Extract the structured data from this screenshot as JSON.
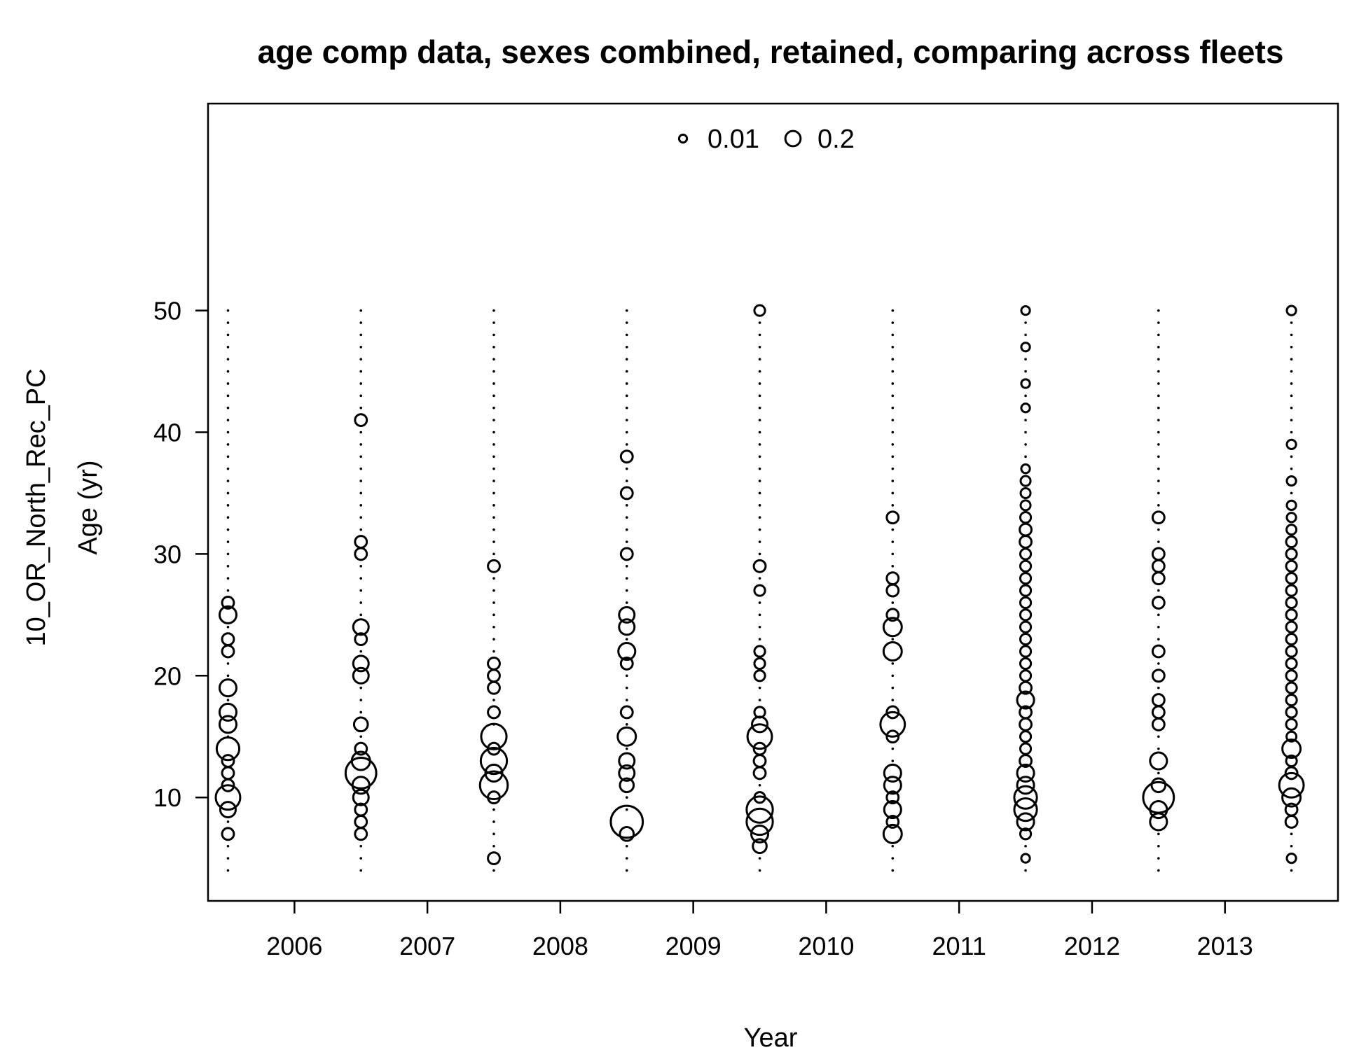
{
  "chart_data": {
    "type": "scatter",
    "subtype": "bubble",
    "title": "age comp data, sexes combined, retained, comparing across fleets",
    "xlabel": "Year",
    "ylabel_lines": [
      "10_OR_North_Rec_PC",
      "Age (yr)"
    ],
    "xlim": [
      2005.35,
      2013.85
    ],
    "ylim": [
      1.5,
      67
    ],
    "x_ticks": [
      2006,
      2007,
      2008,
      2009,
      2010,
      2011,
      2012,
      2013
    ],
    "y_ticks": [
      10,
      20,
      30,
      40,
      50
    ],
    "legend": {
      "placement": "top",
      "entries": [
        {
          "label": "0.01",
          "value": 0.01
        },
        {
          "label": "0.2",
          "value": 0.2
        }
      ]
    },
    "grid": false,
    "series": [
      {
        "year": 2005.5,
        "ages": [
          4,
          5,
          6,
          7,
          8,
          9,
          10,
          11,
          12,
          13,
          14,
          15,
          16,
          17,
          18,
          19,
          20,
          21,
          22,
          23,
          24,
          25,
          26,
          27,
          28,
          29,
          30,
          31,
          32,
          33,
          34,
          35,
          36,
          37,
          38,
          39,
          40,
          41,
          42,
          43,
          44,
          45,
          46,
          47,
          48,
          49,
          50
        ],
        "obs": {
          "7": 0.02,
          "9": 0.04,
          "10": 0.12,
          "11": 0.02,
          "12": 0.02,
          "13": 0.02,
          "14": 0.1,
          "16": 0.05,
          "17": 0.05,
          "19": 0.05,
          "22": 0.02,
          "23": 0.02,
          "25": 0.05,
          "26": 0.02
        }
      },
      {
        "year": 2006.5,
        "ages": [
          4,
          5,
          6,
          7,
          8,
          9,
          10,
          11,
          12,
          13,
          14,
          15,
          16,
          17,
          18,
          19,
          20,
          21,
          22,
          23,
          24,
          25,
          26,
          27,
          28,
          29,
          30,
          31,
          32,
          33,
          34,
          35,
          36,
          37,
          38,
          39,
          40,
          41,
          42,
          43,
          44,
          45,
          46,
          47,
          48,
          49,
          50
        ],
        "obs": {
          "7": 0.02,
          "8": 0.02,
          "9": 0.02,
          "10": 0.04,
          "11": 0.05,
          "12": 0.2,
          "13": 0.06,
          "14": 0.02,
          "16": 0.03,
          "20": 0.04,
          "21": 0.04,
          "23": 0.02,
          "24": 0.04,
          "30": 0.02,
          "31": 0.02,
          "41": 0.02
        }
      },
      {
        "year": 2007.5,
        "ages": [
          4,
          5,
          6,
          7,
          8,
          9,
          10,
          11,
          12,
          13,
          14,
          15,
          16,
          17,
          18,
          19,
          20,
          21,
          22,
          23,
          24,
          25,
          26,
          27,
          28,
          29,
          30,
          31,
          32,
          33,
          34,
          35,
          36,
          37,
          38,
          39,
          40,
          41,
          42,
          43,
          44,
          45,
          46,
          47,
          48,
          49,
          50
        ],
        "obs": {
          "5": 0.02,
          "10": 0.02,
          "11": 0.16,
          "12": 0.05,
          "13": 0.14,
          "14": 0.02,
          "15": 0.13,
          "17": 0.02,
          "19": 0.02,
          "20": 0.02,
          "21": 0.02,
          "29": 0.02
        }
      },
      {
        "year": 2008.5,
        "ages": [
          4,
          5,
          6,
          7,
          8,
          9,
          10,
          11,
          12,
          13,
          14,
          15,
          16,
          17,
          18,
          19,
          20,
          21,
          22,
          23,
          24,
          25,
          26,
          27,
          28,
          29,
          30,
          31,
          32,
          33,
          34,
          35,
          36,
          37,
          38,
          39,
          40,
          41,
          42,
          43,
          44,
          45,
          46,
          47,
          48,
          49,
          50
        ],
        "obs": {
          "7": 0.03,
          "8": 0.22,
          "11": 0.03,
          "12": 0.04,
          "13": 0.04,
          "15": 0.06,
          "17": 0.02,
          "21": 0.02,
          "22": 0.05,
          "24": 0.04,
          "25": 0.04,
          "30": 0.02,
          "35": 0.02,
          "38": 0.02
        }
      },
      {
        "year": 2009.5,
        "ages": [
          4,
          5,
          6,
          7,
          8,
          9,
          10,
          11,
          12,
          13,
          14,
          15,
          16,
          17,
          18,
          19,
          20,
          21,
          22,
          23,
          24,
          25,
          26,
          27,
          28,
          29,
          30,
          31,
          32,
          33,
          34,
          35,
          36,
          37,
          38,
          39,
          40,
          41,
          42,
          43,
          44,
          45,
          46,
          47,
          48,
          49,
          50
        ],
        "obs": {
          "6": 0.03,
          "7": 0.05,
          "8": 0.14,
          "9": 0.14,
          "10": 0.015,
          "12": 0.02,
          "13": 0.02,
          "14": 0.02,
          "15": 0.12,
          "16": 0.04,
          "17": 0.015,
          "20": 0.015,
          "21": 0.015,
          "22": 0.015,
          "27": 0.015,
          "29": 0.02,
          "50": 0.015
        }
      },
      {
        "year": 2010.5,
        "ages": [
          4,
          5,
          6,
          7,
          8,
          9,
          10,
          11,
          12,
          13,
          14,
          15,
          16,
          17,
          18,
          19,
          20,
          21,
          22,
          23,
          24,
          25,
          26,
          27,
          28,
          29,
          30,
          31,
          32,
          33,
          34,
          35,
          36,
          37,
          38,
          39,
          40,
          41,
          42,
          43,
          44,
          45,
          46,
          47,
          48,
          49,
          50
        ],
        "obs": {
          "7": 0.06,
          "8": 0.02,
          "9": 0.05,
          "10": 0.02,
          "11": 0.05,
          "12": 0.05,
          "15": 0.02,
          "16": 0.12,
          "17": 0.02,
          "22": 0.06,
          "24": 0.06,
          "25": 0.02,
          "27": 0.02,
          "28": 0.02,
          "33": 0.02
        }
      },
      {
        "year": 2011.5,
        "ages": [
          4,
          5,
          6,
          7,
          8,
          9,
          10,
          11,
          12,
          13,
          14,
          15,
          16,
          17,
          18,
          19,
          20,
          21,
          22,
          23,
          24,
          25,
          26,
          27,
          28,
          29,
          30,
          31,
          32,
          33,
          34,
          35,
          36,
          37,
          38,
          39,
          40,
          41,
          42,
          43,
          44,
          45,
          46,
          47,
          48,
          49,
          50
        ],
        "obs": {
          "5": 0.008,
          "7": 0.015,
          "8": 0.05,
          "9": 0.1,
          "10": 0.1,
          "11": 0.05,
          "12": 0.05,
          "13": 0.02,
          "14": 0.015,
          "15": 0.015,
          "16": 0.02,
          "17": 0.02,
          "18": 0.05,
          "19": 0.02,
          "20": 0.015,
          "21": 0.015,
          "22": 0.015,
          "23": 0.015,
          "24": 0.015,
          "25": 0.015,
          "26": 0.015,
          "27": 0.015,
          "28": 0.015,
          "29": 0.015,
          "30": 0.015,
          "31": 0.02,
          "32": 0.02,
          "33": 0.015,
          "34": 0.012,
          "35": 0.012,
          "36": 0.012,
          "37": 0.008,
          "42": 0.008,
          "44": 0.008,
          "47": 0.008,
          "50": 0.008
        }
      },
      {
        "year": 2012.5,
        "ages": [
          4,
          5,
          6,
          7,
          8,
          9,
          10,
          11,
          12,
          13,
          14,
          15,
          16,
          17,
          18,
          19,
          20,
          21,
          22,
          23,
          24,
          25,
          26,
          27,
          28,
          29,
          30,
          31,
          32,
          33,
          34,
          35,
          36,
          37,
          38,
          39,
          40,
          41,
          42,
          43,
          44,
          45,
          46,
          47,
          48,
          49,
          50
        ],
        "obs": {
          "8": 0.05,
          "9": 0.05,
          "10": 0.2,
          "11": 0.03,
          "13": 0.05,
          "16": 0.02,
          "17": 0.02,
          "18": 0.02,
          "20": 0.02,
          "22": 0.02,
          "26": 0.02,
          "28": 0.02,
          "29": 0.02,
          "30": 0.02,
          "33": 0.02
        }
      },
      {
        "year": 2013.5,
        "ages": [
          4,
          5,
          6,
          7,
          8,
          9,
          10,
          11,
          12,
          13,
          14,
          15,
          16,
          17,
          18,
          19,
          20,
          21,
          22,
          23,
          24,
          25,
          26,
          27,
          28,
          29,
          30,
          31,
          32,
          33,
          34,
          35,
          36,
          37,
          38,
          39,
          40,
          41,
          42,
          43,
          44,
          45,
          46,
          47,
          48,
          49,
          50
        ],
        "obs": {
          "5": 0.01,
          "8": 0.02,
          "9": 0.02,
          "10": 0.06,
          "11": 0.12,
          "12": 0.02,
          "13": 0.015,
          "14": 0.06,
          "15": 0.012,
          "16": 0.015,
          "17": 0.015,
          "18": 0.015,
          "19": 0.015,
          "20": 0.015,
          "21": 0.015,
          "22": 0.015,
          "23": 0.015,
          "24": 0.015,
          "25": 0.015,
          "26": 0.015,
          "27": 0.015,
          "28": 0.015,
          "29": 0.015,
          "30": 0.015,
          "31": 0.015,
          "32": 0.012,
          "33": 0.01,
          "34": 0.01,
          "36": 0.01,
          "39": 0.01,
          "50": 0.01
        }
      }
    ]
  }
}
